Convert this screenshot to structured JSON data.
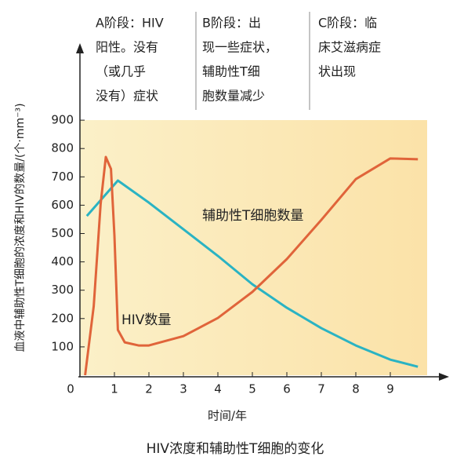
{
  "chart_data": {
    "type": "line",
    "title": "HIV浓度和辅助性T细胞的变化",
    "x_label": "时间/年",
    "y_label": "血液中辅助性T细胞的浓度和HIV的数量/(个·mm⁻³)",
    "xlim": [
      0,
      10.6
    ],
    "ylim": [
      0,
      1140
    ],
    "xticks": [
      0,
      1,
      2,
      3,
      4,
      5,
      6,
      7,
      8,
      9
    ],
    "yticks": [
      100,
      200,
      300,
      400,
      500,
      600,
      700,
      800,
      900
    ],
    "series": [
      {
        "name": "辅助性T细胞数量",
        "color": "#2ab3c3",
        "x": [
          0.2,
          1.1,
          2,
          3,
          4,
          5,
          6,
          7,
          8,
          9,
          9.8
        ],
        "values": [
          562,
          687,
          609,
          515,
          421,
          321,
          238,
          166,
          105,
          55,
          30
        ]
      },
      {
        "name": "HIV数量",
        "color": "#e0643a",
        "x": [
          0.15,
          0.4,
          0.6,
          0.75,
          0.9,
          1.0,
          1.1,
          1.3,
          1.7,
          2,
          3,
          4,
          5,
          6,
          7,
          8,
          9,
          9.8
        ],
        "values": [
          0,
          244,
          604,
          770,
          728,
          493,
          160,
          116,
          105,
          105,
          138,
          202,
          294,
          410,
          548,
          692,
          765,
          762
        ]
      }
    ],
    "stages": [
      {
        "lines": [
          "A阶段：HIV",
          "阳性。没有",
          "（或几乎",
          "没有）症状"
        ]
      },
      {
        "lines": [
          "B阶段：出",
          "现一些症状，",
          "辅助性T细",
          "胞数量减少"
        ]
      },
      {
        "lines": [
          "C阶段：临",
          "床艾滋病症",
          "状出现"
        ]
      }
    ]
  }
}
